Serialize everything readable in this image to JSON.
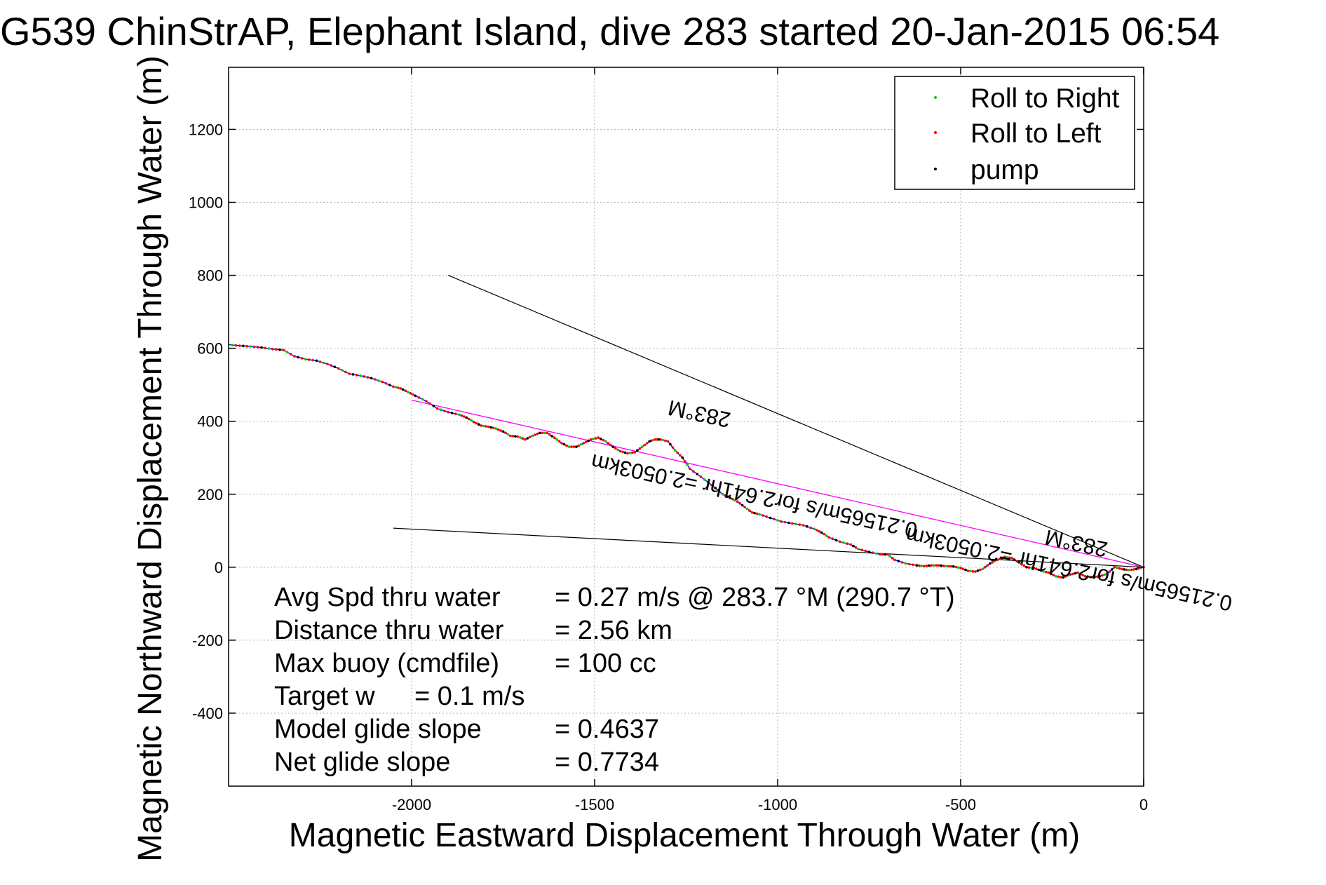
{
  "chart_data": {
    "type": "line",
    "title": "G539 ChinStrAP, Elephant Island, dive 283 started 20-Jan-2015 06:54",
    "xlabel": "Magnetic Eastward Displacement Through Water (m)",
    "ylabel": "Magnetic Northward Displacement Through Water (m)",
    "xlim": [
      -2500,
      0
    ],
    "ylim": [
      -600,
      1370
    ],
    "xticks": [
      -2000,
      -1500,
      -1000,
      -500,
      0
    ],
    "yticks": [
      -400,
      -200,
      0,
      200,
      400,
      600,
      800,
      1000,
      1200
    ],
    "grid": true,
    "legend_position": "top-right",
    "legend": [
      {
        "label": "Roll to Right",
        "color": "#00cc00"
      },
      {
        "label": "Roll to Left",
        "color": "#ff0000"
      },
      {
        "label": "pump",
        "color": "#000000"
      }
    ],
    "colors": {
      "track": "#0000ff",
      "roll_right": "#00cc00",
      "roll_left": "#ff0000",
      "pump": "#000000",
      "net_course": "#ff00ff",
      "reference_lines": "#000000"
    },
    "series": [
      {
        "name": "track",
        "x": [
          0,
          -20,
          -40,
          -60,
          -80,
          -100,
          -120,
          -140,
          -160,
          -180,
          -200,
          -220,
          -240,
          -260,
          -280,
          -300,
          -320,
          -340,
          -360,
          -380,
          -400,
          -420,
          -440,
          -460,
          -480,
          -500,
          -520,
          -540,
          -560,
          -580,
          -600,
          -620,
          -650,
          -680,
          -700,
          -720,
          -750,
          -780,
          -800,
          -830,
          -860,
          -880,
          -900,
          -930,
          -960,
          -990,
          -1020,
          -1050,
          -1070,
          -1090,
          -1110,
          -1130,
          -1150,
          -1180,
          -1210,
          -1240,
          -1260,
          -1280,
          -1300,
          -1320,
          -1335,
          -1350,
          -1370,
          -1390,
          -1410,
          -1430,
          -1450,
          -1470,
          -1490,
          -1510,
          -1530,
          -1550,
          -1570,
          -1590,
          -1610,
          -1630,
          -1650,
          -1670,
          -1690,
          -1710,
          -1730,
          -1750,
          -1770,
          -1790,
          -1810,
          -1830,
          -1850,
          -1870,
          -1900,
          -1930,
          -1960,
          -1990,
          -2010,
          -2030,
          -2050,
          -2080,
          -2110,
          -2140,
          -2170,
          -2200,
          -2230,
          -2260,
          -2290,
          -2320,
          -2350,
          -2380,
          -2410,
          -2440,
          -2470,
          -2500
        ],
        "y": [
          0,
          -5,
          -8,
          -5,
          0,
          -18,
          -25,
          -27,
          -25,
          -15,
          -20,
          -28,
          -25,
          -15,
          -10,
          -2,
          0,
          12,
          25,
          28,
          20,
          10,
          -5,
          -12,
          -10,
          -2,
          2,
          3,
          5,
          5,
          3,
          5,
          10,
          20,
          35,
          35,
          42,
          50,
          62,
          70,
          82,
          95,
          105,
          115,
          120,
          125,
          135,
          145,
          150,
          165,
          180,
          190,
          200,
          225,
          248,
          270,
          300,
          320,
          345,
          350,
          350,
          345,
          330,
          315,
          312,
          318,
          330,
          345,
          355,
          350,
          340,
          330,
          330,
          340,
          355,
          368,
          368,
          360,
          350,
          358,
          360,
          372,
          380,
          385,
          388,
          398,
          410,
          418,
          425,
          435,
          455,
          470,
          480,
          490,
          495,
          508,
          518,
          525,
          530,
          545,
          557,
          566,
          570,
          578,
          595,
          598,
          602,
          605,
          607,
          610
        ]
      }
    ],
    "net_course_line": {
      "x": [
        0,
        -2000
      ],
      "y": [
        0,
        458
      ]
    },
    "reference_lines": [
      {
        "x": [
          0,
          -1900
        ],
        "y": [
          0,
          800
        ]
      },
      {
        "x": [
          0,
          -2050
        ],
        "y": [
          0,
          107
        ]
      }
    ],
    "annotations": [
      {
        "text": "283°M",
        "x": -1210,
        "y": 440,
        "rotation": 192
      },
      {
        "text": "0.21565m/s for2.641hr =2.0503km",
        "x": -1060,
        "y": 215,
        "rotation": 192
      },
      {
        "text": "283°M",
        "x": -180,
        "y": 85,
        "rotation": 192
      },
      {
        "text": "0.21565m/s for2.641hr =2.0503km",
        "x": -200,
        "y": 14,
        "rotation": 192
      }
    ],
    "stats": {
      "avg_spd_label": "Avg Spd thru water",
      "avg_spd_value": "=  0.27 m/s @ 283.7 °M (290.7 °T)",
      "distance_label": "Distance thru water",
      "distance_value": "=  2.56 km",
      "max_buoy_label": "Max buoy (cmdfile)",
      "max_buoy_value": "= 100 cc",
      "target_w_label": "Target w",
      "target_w_value": "= 0.1 m/s",
      "model_glide_label": "Model glide slope",
      "model_glide_value": "= 0.4637",
      "net_glide_label": "Net glide slope",
      "net_glide_value": "= 0.7734"
    }
  }
}
